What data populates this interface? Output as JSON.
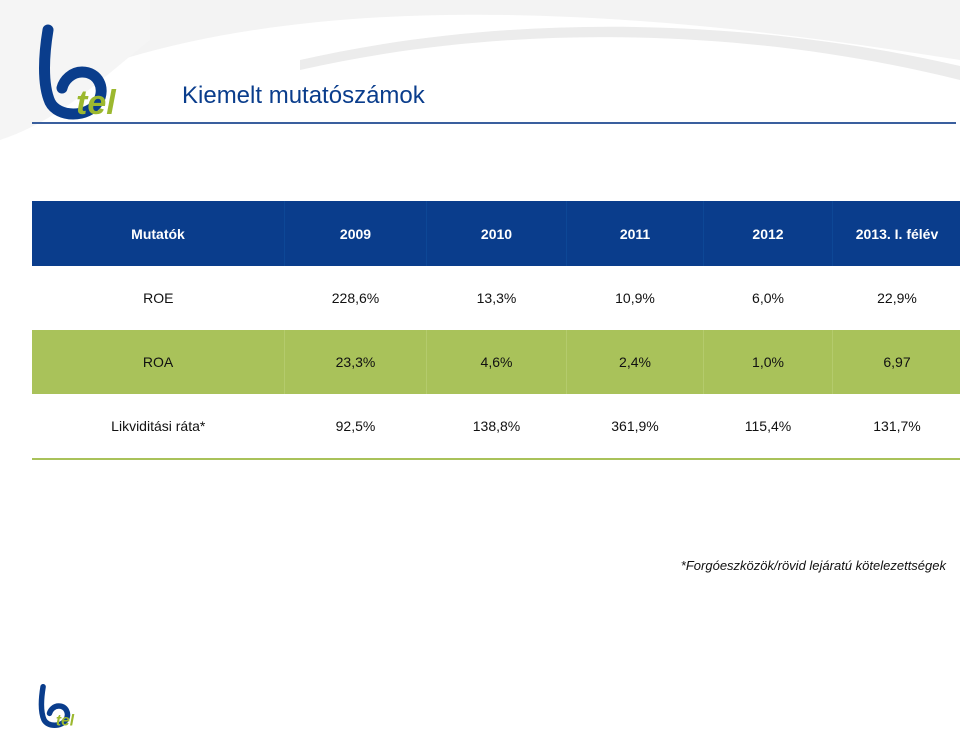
{
  "logo": {
    "brand": "btel"
  },
  "page": {
    "title": "Kiemelt mutatószámok"
  },
  "table": {
    "headers": [
      "Mutatók",
      "2009",
      "2010",
      "2011",
      "2012",
      "2013. I. félév"
    ],
    "rows": [
      {
        "label": "ROE",
        "values": [
          "228,6%",
          "13,3%",
          "10,9%",
          "6,0%",
          "22,9%"
        ]
      },
      {
        "label": "ROA",
        "values": [
          "23,3%",
          "4,6%",
          "2,4%",
          "1,0%",
          "6,97"
        ]
      },
      {
        "label": "Likviditási ráta*",
        "values": [
          "92,5%",
          "138,8%",
          "361,9%",
          "115,4%",
          "131,7%"
        ]
      }
    ]
  },
  "footnote": "*Forgóeszközök/rövid lejáratú kötelezettségek",
  "colors": {
    "header_blue": "#0a3d8c",
    "row_green": "#a9c25a",
    "logo_green": "#9cb82f"
  }
}
